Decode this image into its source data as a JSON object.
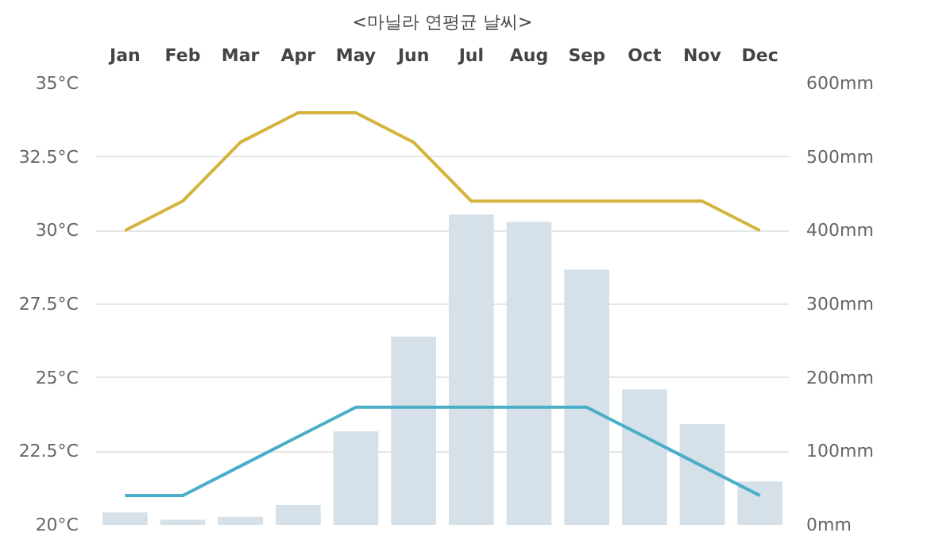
{
  "chart_data": {
    "type": "line",
    "title": "<마닐라 연평균 날씨>",
    "categories": [
      "Jan",
      "Feb",
      "Mar",
      "Apr",
      "May",
      "Jun",
      "Jul",
      "Aug",
      "Sep",
      "Oct",
      "Nov",
      "Dec"
    ],
    "series": [
      {
        "type": "bar",
        "axis": "y2",
        "color": "#d5e0e8",
        "values": [
          17,
          7,
          11,
          27,
          127,
          256,
          422,
          412,
          347,
          184,
          137,
          59
        ]
      },
      {
        "color": "#d4b43c",
        "values": [
          30,
          31,
          33,
          34,
          34,
          33,
          31,
          31,
          31,
          31,
          31,
          30
        ]
      },
      {
        "color": "#4aaec8",
        "values": [
          21,
          21,
          22,
          23,
          24,
          24,
          24,
          24,
          24,
          23,
          22,
          21
        ]
      }
    ],
    "ylim": [
      20,
      35
    ],
    "yticks": [
      {
        "value": 20,
        "label": "20°C"
      },
      {
        "value": 22.5,
        "label": "22.5°C"
      },
      {
        "value": 25,
        "label": "25°C"
      },
      {
        "value": 27.5,
        "label": "27.5°C"
      },
      {
        "value": 30,
        "label": "30°C"
      },
      {
        "value": 32.5,
        "label": "32.5°C"
      },
      {
        "value": 35,
        "label": "35°C"
      }
    ],
    "y2lim": [
      0,
      600
    ],
    "y2ticks": [
      {
        "value": 0,
        "label": "0mm"
      },
      {
        "value": 100,
        "label": "100mm"
      },
      {
        "value": 200,
        "label": "200mm"
      },
      {
        "value": 300,
        "label": "300mm"
      },
      {
        "value": 400,
        "label": "400mm"
      },
      {
        "value": 500,
        "label": "500mm"
      },
      {
        "value": 600,
        "label": "600mm"
      }
    ],
    "grid": "y",
    "marker": "none",
    "line_style": "solid"
  }
}
